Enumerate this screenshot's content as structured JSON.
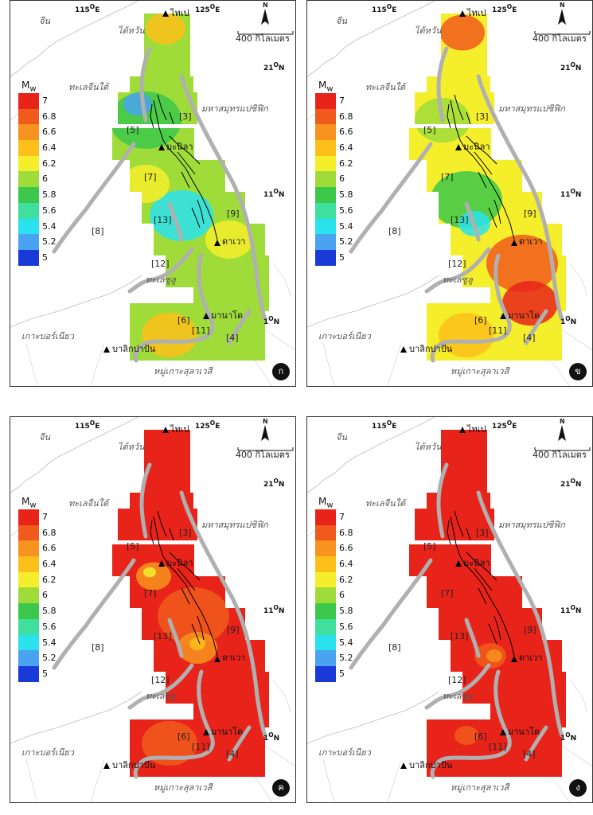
{
  "labels": {
    "lon_west": "115",
    "lon_east": "125",
    "degree": "O",
    "east": "E",
    "north": "N",
    "lat_21": "21",
    "lat_11": "11",
    "lat_1": "1",
    "china": "จีน",
    "taiwan": "ไต้หวัน",
    "scs": "ทะเลจีนใต้",
    "pacific": "มหาสมุทรแปซิฟิก",
    "sulu": "ทะเลซูลู",
    "borneo": "เกาะบอร์เนียว",
    "sulawesi": "หมู่เกาะสุลาเวสี",
    "taipei": "ไทเป",
    "manila": "มะนิลา",
    "davao": "ดาเวา",
    "manado": "มานาโด",
    "balikpapan": "บาลิกปาปัน",
    "scale": "400 กิโลเมตร",
    "north_arrow": "N",
    "mw": "M",
    "mw_sub": "w"
  },
  "faults": [
    "[3]",
    "[4]",
    "[5]",
    "[6]",
    "[7]",
    "[8]",
    "[9]",
    "[11]",
    "[12]",
    "[13]"
  ],
  "legend": {
    "ticks": [
      "7",
      "6.8",
      "6.6",
      "6.4",
      "6.2",
      "6",
      "5.8",
      "5.6",
      "5.4",
      "5.2",
      "5"
    ],
    "colors": [
      "#e8231a",
      "#f05a1c",
      "#f7931e",
      "#fdc01a",
      "#f5ee2b",
      "#9fdc3a",
      "#3cc84a",
      "#3fdfa0",
      "#2ae2ee",
      "#4aa3f0",
      "#1a3ad8"
    ]
  },
  "panels": [
    {
      "label": "ก",
      "scheme": "low"
    },
    {
      "label": "ข",
      "scheme": "mid"
    },
    {
      "label": "ค",
      "scheme": "high"
    },
    {
      "label": "ง",
      "scheme": "max"
    }
  ]
}
